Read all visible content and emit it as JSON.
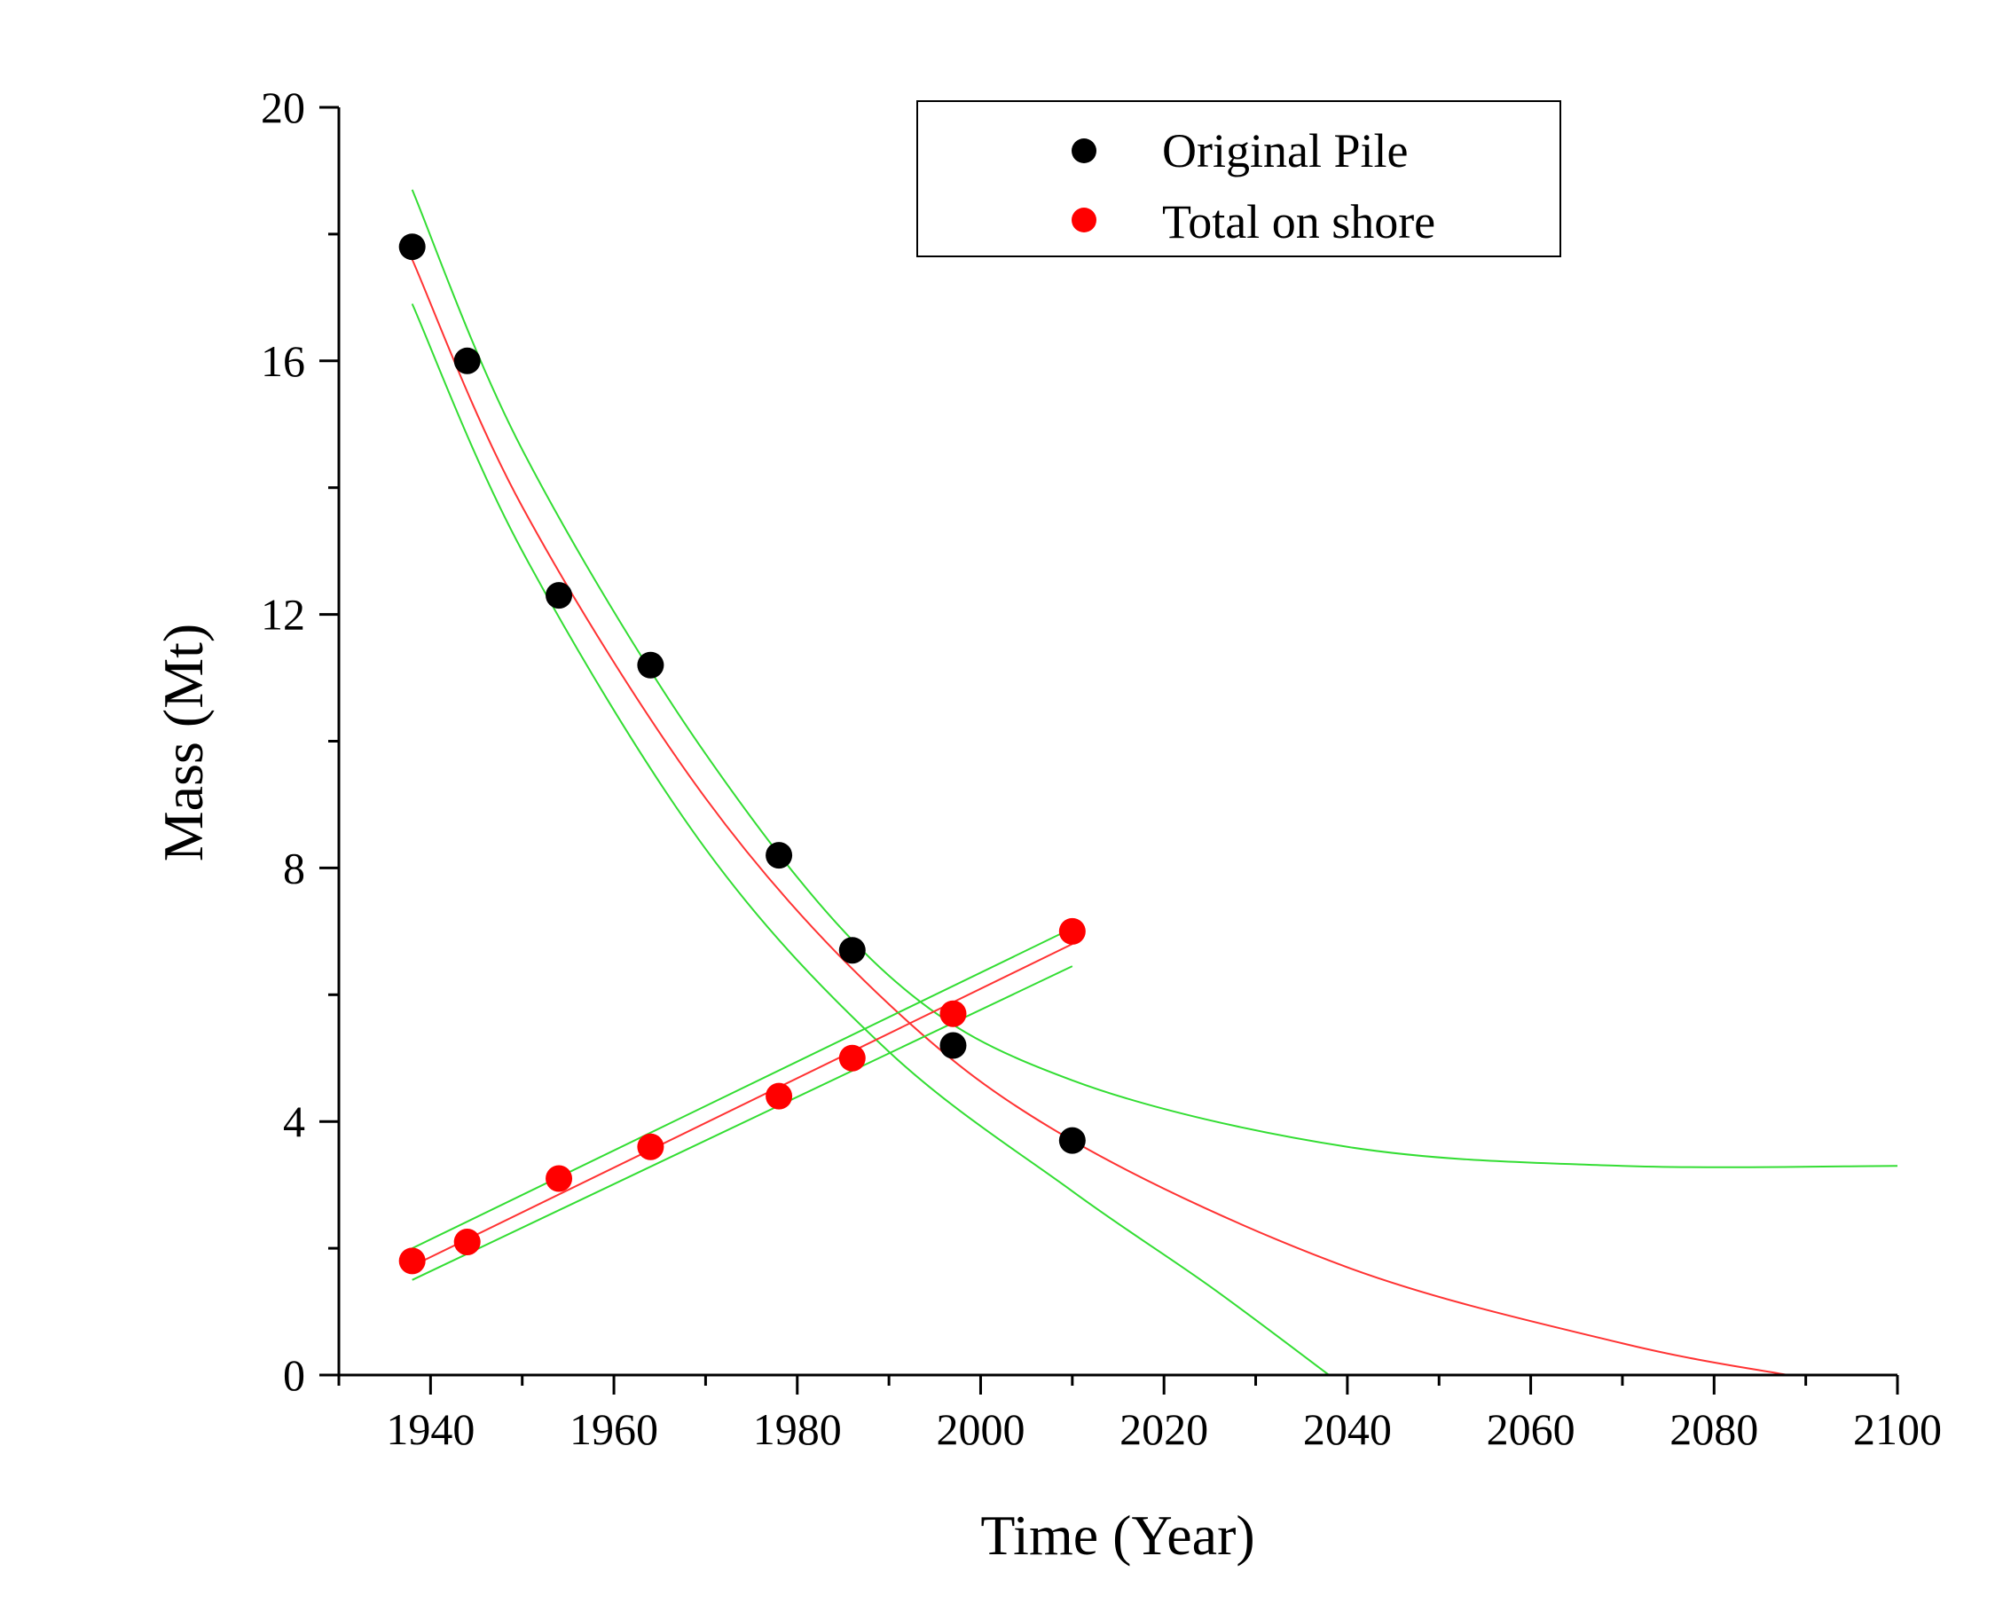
{
  "chart_data": {
    "type": "scatter",
    "title": "",
    "xlabel": "Time (Year)",
    "ylabel": "Mass (Mt)",
    "xlim": [
      1930,
      2100
    ],
    "ylim": [
      0,
      20
    ],
    "x_ticks": [
      1940,
      1960,
      1980,
      2000,
      2020,
      2040,
      2060,
      2080,
      2100
    ],
    "x_tick_labels": [
      "1940",
      "1960",
      "1980",
      "2000",
      "2020",
      "2040",
      "2060",
      "2080",
      "2100"
    ],
    "x_minor_step": 10,
    "y_ticks": [
      0,
      4,
      8,
      12,
      16,
      20
    ],
    "y_tick_labels": [
      "0",
      "4",
      "8",
      "12",
      "16",
      "20"
    ],
    "y_minor_step": 2,
    "grid": false,
    "legend_position": "top-right",
    "series": [
      {
        "name": "Original Pile",
        "color": "#000000",
        "x": [
          1938,
          1944,
          1954,
          1964,
          1978,
          1986,
          1997,
          2010
        ],
        "y": [
          17.8,
          16.0,
          12.3,
          11.2,
          8.2,
          6.7,
          5.2,
          3.7
        ]
      },
      {
        "name": "Total on shore",
        "color": "#ff0000",
        "x": [
          1938,
          1944,
          1954,
          1964,
          1978,
          1986,
          1997,
          2010
        ],
        "y": [
          1.8,
          2.1,
          3.1,
          3.6,
          4.4,
          5.0,
          5.7,
          7.0
        ]
      }
    ],
    "fit_curves": [
      {
        "name": "exponential fit (Original Pile)",
        "color": "#ff3333",
        "x": [
          1938,
          1950,
          1970,
          1990,
          2010,
          2040,
          2070,
          2088
        ],
        "y": [
          17.6,
          13.7,
          9.1,
          5.85,
          3.7,
          1.7,
          0.5,
          0.0
        ]
      },
      {
        "name": "upper confidence band (Original Pile)",
        "color": "#33dd33",
        "x": [
          1938,
          1950,
          1970,
          1990,
          2010,
          2040,
          2070,
          2100
        ],
        "y": [
          18.7,
          14.6,
          9.8,
          6.3,
          4.65,
          3.6,
          3.3,
          3.3
        ]
      },
      {
        "name": "lower confidence band (Original Pile)",
        "color": "#33dd33",
        "x": [
          1938,
          1950,
          1970,
          1990,
          2010,
          2025,
          2038
        ],
        "y": [
          16.9,
          13.0,
          8.3,
          5.1,
          2.9,
          1.4,
          0.0
        ]
      },
      {
        "name": "linear fit (Total on shore)",
        "color": "#ff3333",
        "x": [
          1938,
          2010
        ],
        "y": [
          1.72,
          6.8
        ]
      },
      {
        "name": "upper confidence band (Total on shore)",
        "color": "#33dd33",
        "x": [
          1938,
          2010
        ],
        "y": [
          2.0,
          7.05
        ]
      },
      {
        "name": "lower confidence band (Total on shore)",
        "color": "#33dd33",
        "x": [
          1938,
          2010
        ],
        "y": [
          1.5,
          6.45
        ]
      }
    ]
  }
}
